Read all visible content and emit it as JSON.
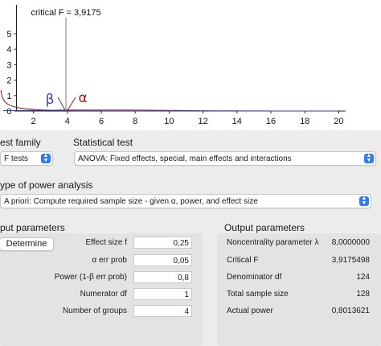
{
  "plot": {
    "critical_label": "critical F = 3,9175",
    "critical_value": 3.9175,
    "beta_symbol": "β",
    "alpha_symbol": "α",
    "x_ticks": [
      "2",
      "4",
      "6",
      "8",
      "10",
      "12",
      "14",
      "16",
      "18",
      "20"
    ],
    "y_ticks": [
      "5",
      "4",
      "3",
      "2",
      "1",
      "0"
    ],
    "colors": {
      "central": "#8b1a1a",
      "noncentral": "#3a3aa8",
      "critical_line": "#777777",
      "beta": "#3a3ab0",
      "alpha": "#a01818"
    }
  },
  "test_family": {
    "label": "est family",
    "value": "F tests"
  },
  "statistical_test": {
    "label": "Statistical test",
    "value": "ANOVA: Fixed effects, special, main effects and interactions"
  },
  "power_analysis": {
    "label": "ype of power analysis",
    "value": "A priori: Compute required sample size - given α, power, and effect size"
  },
  "input": {
    "title": "put parameters",
    "determine_label": "Determine",
    "fields": [
      {
        "label": "Effect size f",
        "value": "0,25"
      },
      {
        "label": "α err prob",
        "value": "0,05"
      },
      {
        "label": "Power (1-β err prob)",
        "value": "0,8"
      },
      {
        "label": "Numerator df",
        "value": "1"
      },
      {
        "label": "Number of groups",
        "value": "4"
      }
    ]
  },
  "output": {
    "title": "Output parameters",
    "rows": [
      {
        "label": "Noncentrality parameter λ",
        "value": "8,0000000"
      },
      {
        "label": "Critical F",
        "value": "3,9175498"
      },
      {
        "label": "Denominator df",
        "value": "124"
      },
      {
        "label": "Total sample size",
        "value": "128"
      },
      {
        "label": "Actual power",
        "value": "0,8013621"
      }
    ]
  }
}
